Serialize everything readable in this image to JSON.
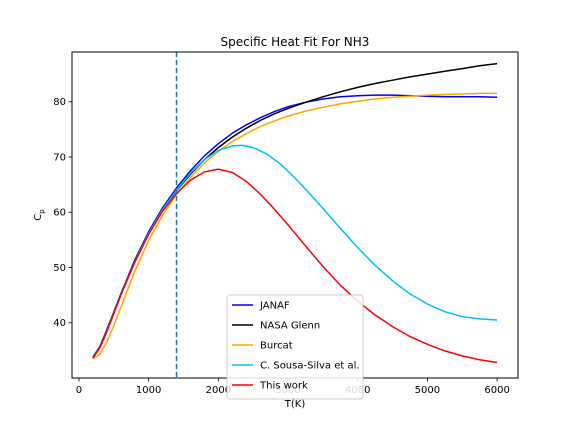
{
  "chart_data": {
    "type": "line",
    "title": "Specific Heat Fit For NH3",
    "xlabel": "T(K)",
    "ylabel": "C",
    "ylabel_sub": "p",
    "xlim": [
      -100,
      6300
    ],
    "ylim": [
      30,
      89
    ],
    "xticks": [
      0,
      1000,
      2000,
      3000,
      4000,
      5000,
      6000
    ],
    "yticks": [
      40,
      50,
      60,
      70,
      80
    ],
    "grid": false,
    "legend_position": "lower-center",
    "vline": {
      "x": 1400,
      "color": "#1f77b4",
      "style": "dashed"
    },
    "series": [
      {
        "name": "JANAF",
        "color": "#0000ff",
        "x": [
          200,
          300,
          400,
          500,
          600,
          800,
          1000,
          1200,
          1400,
          1600,
          1800,
          2000,
          2200,
          2400,
          2600,
          2800,
          3000,
          3250,
          3500,
          3750,
          4000,
          4250,
          4500,
          4750,
          5000,
          5250,
          5500,
          5750,
          6000
        ],
        "y": [
          33.8,
          35.7,
          38.7,
          41.9,
          45.2,
          51.3,
          56.5,
          60.8,
          64.4,
          67.5,
          70.2,
          72.4,
          74.3,
          75.8,
          77.1,
          78.2,
          79.1,
          79.9,
          80.5,
          80.9,
          81.1,
          81.2,
          81.2,
          81.1,
          81.0,
          80.9,
          80.9,
          80.9,
          80.8
        ]
      },
      {
        "name": "NASA Glenn",
        "color": "#000000",
        "x": [
          200,
          300,
          400,
          500,
          600,
          800,
          1000,
          1200,
          1400,
          1600,
          1800,
          2000,
          2200,
          2400,
          2600,
          2800,
          3000,
          3250,
          3500,
          3750,
          4000,
          4250,
          4500,
          4750,
          5000,
          5250,
          5500,
          5750,
          6000
        ],
        "y": [
          33.6,
          35.6,
          38.5,
          41.8,
          45.1,
          51.1,
          56.3,
          60.5,
          63.9,
          66.9,
          69.5,
          71.7,
          73.6,
          75.2,
          76.6,
          77.8,
          78.8,
          79.9,
          80.9,
          81.8,
          82.6,
          83.3,
          83.9,
          84.5,
          85.0,
          85.5,
          86.0,
          86.5,
          86.9
        ]
      },
      {
        "name": "Burcat",
        "color": "#ffa500",
        "x": [
          200,
          300,
          400,
          500,
          600,
          800,
          1000,
          1200,
          1400,
          1600,
          1800,
          2000,
          2200,
          2400,
          2600,
          2800,
          3000,
          3250,
          3500,
          3750,
          4000,
          4250,
          4500,
          4750,
          5000,
          5250,
          5500,
          5750,
          6000
        ],
        "y": [
          33.5,
          34.3,
          36.5,
          39.5,
          42.8,
          49.3,
          54.9,
          59.5,
          63.2,
          66.3,
          68.9,
          71.0,
          72.8,
          74.2,
          75.5,
          76.5,
          77.4,
          78.3,
          79.0,
          79.6,
          80.1,
          80.5,
          80.8,
          81.0,
          81.2,
          81.3,
          81.4,
          81.5,
          81.5
        ]
      },
      {
        "name": "C. Sousa-Silva et al.",
        "color": "#00bfff",
        "x": [
          200,
          300,
          400,
          500,
          600,
          800,
          1000,
          1200,
          1400,
          1600,
          1800,
          2000,
          2200,
          2350,
          2500,
          2700,
          2900,
          3100,
          3300,
          3500,
          3750,
          4000,
          4250,
          4500,
          4750,
          5000,
          5250,
          5500,
          5750,
          6000
        ],
        "y": [
          33.6,
          35.5,
          38.4,
          41.7,
          45.0,
          51.0,
          56.2,
          60.5,
          64.0,
          67.1,
          69.5,
          71.2,
          72.0,
          72.1,
          71.7,
          70.5,
          68.6,
          66.2,
          63.5,
          60.7,
          57.1,
          53.6,
          50.4,
          47.6,
          45.2,
          43.4,
          42.0,
          41.1,
          40.7,
          40.5
        ]
      },
      {
        "name": "This work",
        "color": "#ff0000",
        "x": [
          200,
          300,
          400,
          500,
          600,
          800,
          1000,
          1200,
          1400,
          1600,
          1800,
          2000,
          2200,
          2400,
          2600,
          2800,
          3000,
          3250,
          3500,
          3750,
          4000,
          4250,
          4500,
          4750,
          5000,
          5250,
          5500,
          5750,
          6000
        ],
        "y": [
          33.6,
          35.5,
          38.4,
          41.7,
          45.0,
          50.9,
          56.0,
          60.2,
          63.4,
          65.8,
          67.3,
          67.8,
          67.2,
          65.6,
          63.3,
          60.6,
          57.7,
          53.9,
          50.2,
          46.8,
          43.9,
          41.4,
          39.3,
          37.5,
          36.1,
          34.9,
          34.0,
          33.3,
          32.8
        ]
      }
    ]
  }
}
